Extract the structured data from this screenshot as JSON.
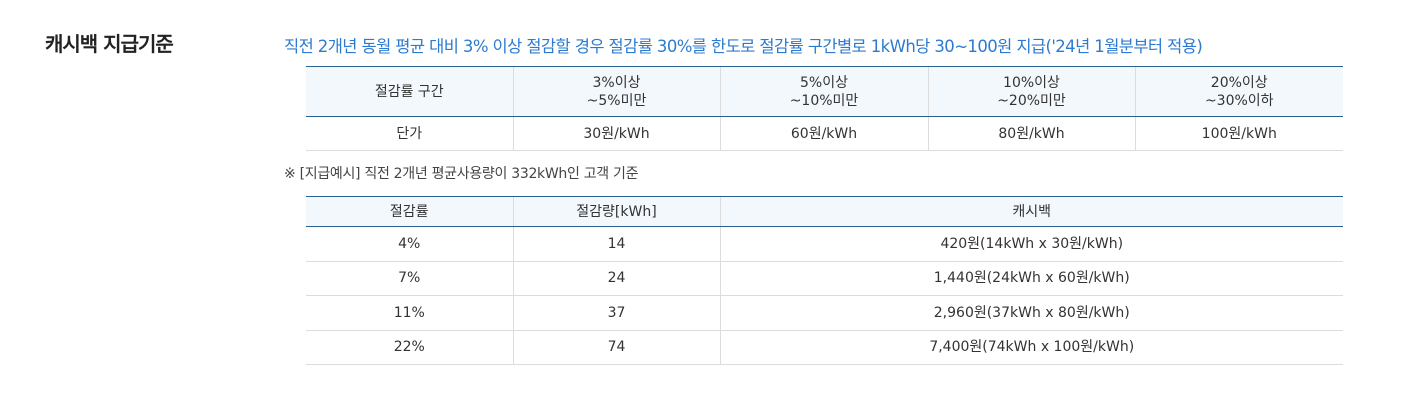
{
  "section": {
    "title": "캐시백 지급기준",
    "heading": "직전 2개년 동월 평균 대비 3% 이상 절감할 경우 절감률 30%를 한도로 절감률 구간별로 1kWh당 30~100원 지급('24년 1월분부터 적용)",
    "rate_table": {
      "header": [
        "절감률 구간",
        "3%이상\n~5%미만",
        "5%이상\n~10%미만",
        "10%이상\n~20%미만",
        "20%이상\n~30%이하"
      ],
      "rows": [
        [
          "단가",
          "30원/kWh",
          "60원/kWh",
          "80원/kWh",
          "100원/kWh"
        ]
      ]
    },
    "note": "※ [지급예시] 직전 2개년 평균사용량이 332kWh인 고객 기준",
    "example_table": {
      "header": [
        "절감률",
        "절감량[kWh]",
        "캐시백"
      ],
      "rows": [
        [
          "4%",
          "14",
          "420원(14kWh x 30원/kWh)"
        ],
        [
          "7%",
          "24",
          "1,440원(24kWh x 60원/kWh)"
        ],
        [
          "11%",
          "37",
          "2,960원(37kWh x 80원/kWh)"
        ],
        [
          "22%",
          "74",
          "7,400원(74kWh x 100원/kWh)"
        ]
      ]
    }
  }
}
